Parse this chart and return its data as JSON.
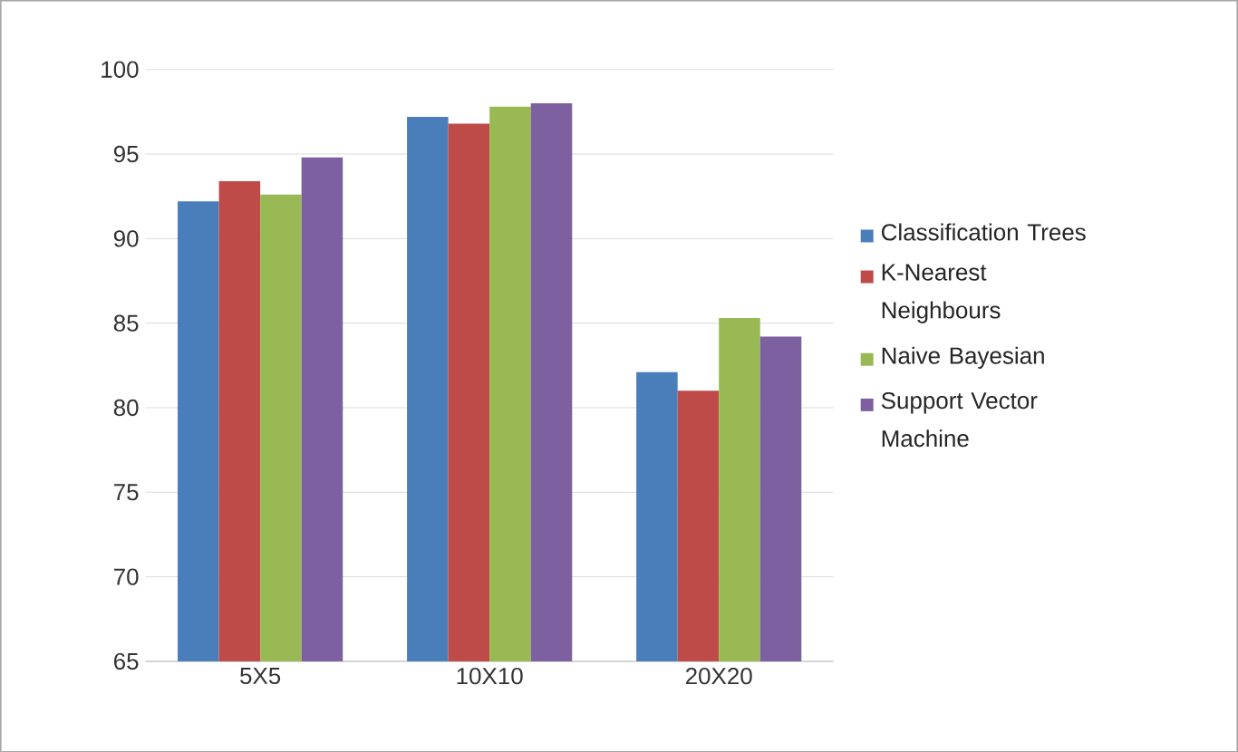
{
  "chart_data": {
    "type": "bar",
    "categories": [
      "5X5",
      "10X10",
      "20X20"
    ],
    "series": [
      {
        "name": "Classification Trees",
        "color": "#4a7ebb",
        "values": [
          92.2,
          97.2,
          82.1
        ]
      },
      {
        "name": "K-Nearest Neighbours",
        "color": "#be4b48",
        "values": [
          93.4,
          96.8,
          81.0
        ]
      },
      {
        "name": "Naive Bayesian",
        "color": "#98b954",
        "values": [
          92.6,
          97.8,
          85.3
        ]
      },
      {
        "name": "Support Vector Machine",
        "color": "#7d60a0",
        "values": [
          94.8,
          98.0,
          84.2
        ]
      }
    ],
    "ylim": [
      65,
      100
    ],
    "yticks": [
      65,
      70,
      75,
      80,
      85,
      90,
      95,
      100
    ],
    "grid": "y",
    "legend": "right"
  }
}
